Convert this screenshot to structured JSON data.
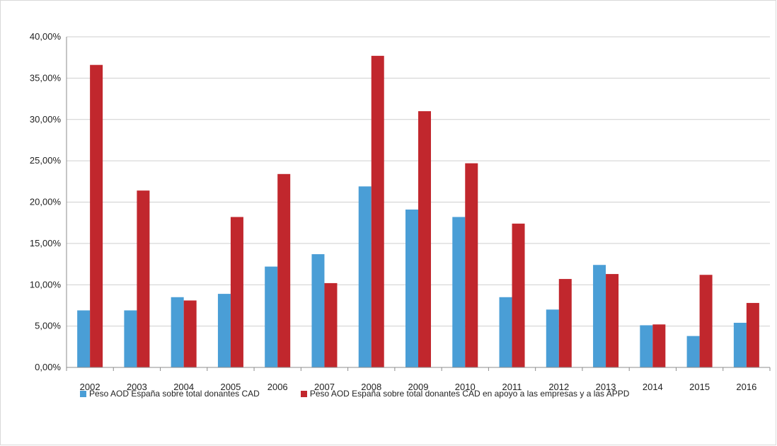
{
  "chart_data": {
    "type": "bar",
    "categories": [
      "2002",
      "2003",
      "2004",
      "2005",
      "2006",
      "2007",
      "2008",
      "2009",
      "2010",
      "2011",
      "2012",
      "2013",
      "2014",
      "2015",
      "2016"
    ],
    "series": [
      {
        "name": "Peso AOD España sobre total donantes CAD",
        "color": "#4a9ed6",
        "values": [
          6.9,
          6.9,
          8.5,
          8.9,
          12.2,
          13.7,
          21.9,
          19.1,
          18.2,
          8.5,
          7.0,
          12.4,
          5.1,
          3.8,
          5.4
        ]
      },
      {
        "name": "Peso AOD España sobre total donantes CAD en apoyo a las empresas y a las APPD",
        "color": "#c1272d",
        "values": [
          36.6,
          21.4,
          8.1,
          18.2,
          23.4,
          10.2,
          37.7,
          31.0,
          24.7,
          17.4,
          10.7,
          11.3,
          5.2,
          11.2,
          7.8
        ]
      }
    ],
    "yticks": [
      "0,00%",
      "5,00%",
      "10,00%",
      "15,00%",
      "20,00%",
      "25,00%",
      "30,00%",
      "35,00%",
      "40,00%"
    ],
    "ylim": [
      0,
      40
    ],
    "grid": true,
    "legend_position": "bottom",
    "title": "",
    "xlabel": "",
    "ylabel": ""
  }
}
